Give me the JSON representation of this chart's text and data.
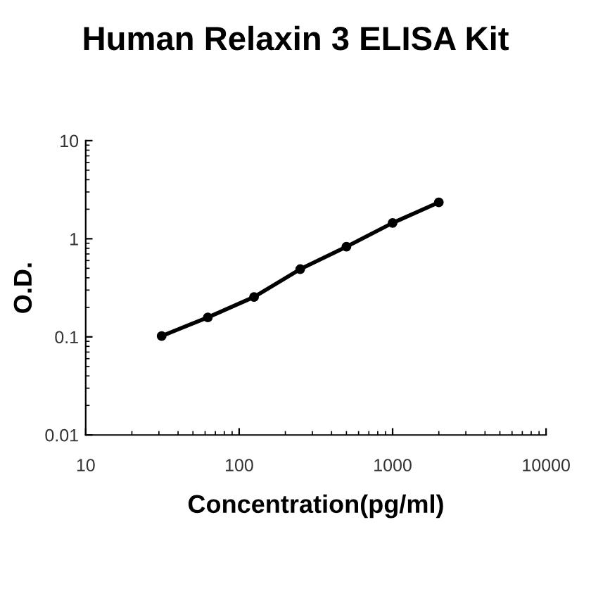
{
  "chart_data": {
    "type": "line",
    "title": "Human Relaxin 3 ELISA Kit",
    "xlabel": "Concentration(pg/ml)",
    "ylabel": "O.D.",
    "x": [
      31.25,
      62.5,
      125,
      250,
      500,
      1000,
      2000
    ],
    "series": [
      {
        "color": "#000000",
        "values": [
          0.102,
          0.158,
          0.255,
          0.49,
          0.83,
          1.45,
          2.35
        ]
      }
    ],
    "log": "xy",
    "xlim": [
      10,
      10000
    ],
    "ylim": [
      0.01,
      10
    ],
    "xticks": [
      10,
      100,
      1000,
      10000
    ],
    "yticks": [
      0.01,
      0.1,
      1,
      10
    ],
    "marker": "circle",
    "line_style": "solid",
    "grid": false,
    "legend": false
  }
}
